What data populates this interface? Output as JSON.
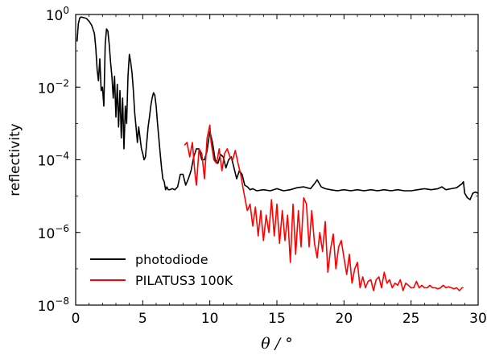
{
  "chart_data": {
    "type": "line",
    "title": "",
    "xlabel": "θ / °",
    "ylabel": "reflectivity",
    "xlim": [
      0,
      30
    ],
    "ylim": [
      1e-08,
      1
    ],
    "yscale": "log",
    "grid": false,
    "legend_position": "lower-left",
    "x_ticks": [
      0,
      5,
      10,
      15,
      20,
      25,
      30
    ],
    "x_tick_labels": [
      "0",
      "5",
      "10",
      "15",
      "20",
      "25",
      "30"
    ],
    "y_ticks": [
      1e-08,
      1e-06,
      0.0001,
      0.01,
      1
    ],
    "y_tick_labels": [
      {
        "base": "10",
        "exp": "−8"
      },
      {
        "base": "10",
        "exp": "−6"
      },
      {
        "base": "10",
        "exp": "−4"
      },
      {
        "base": "10",
        "exp": "−2"
      },
      {
        "base": "10",
        "exp": "0"
      }
    ],
    "series": [
      {
        "name": "photodiode",
        "color": "#000000",
        "x": [
          0.1,
          0.2,
          0.3,
          0.4,
          0.6,
          0.8,
          1.0,
          1.2,
          1.4,
          1.5,
          1.6,
          1.7,
          1.8,
          1.9,
          2.0,
          2.1,
          2.2,
          2.3,
          2.4,
          2.5,
          2.6,
          2.7,
          2.8,
          2.9,
          3.0,
          3.1,
          3.2,
          3.3,
          3.4,
          3.5,
          3.6,
          3.7,
          3.8,
          3.9,
          4.0,
          4.1,
          4.2,
          4.3,
          4.4,
          4.5,
          4.6,
          4.7,
          4.8,
          4.9,
          5.0,
          5.1,
          5.2,
          5.3,
          5.4,
          5.5,
          5.6,
          5.7,
          5.8,
          5.9,
          6.0,
          6.1,
          6.2,
          6.3,
          6.4,
          6.5,
          6.6,
          6.7,
          6.8,
          6.9,
          7.0,
          7.2,
          7.4,
          7.6,
          7.8,
          8.0,
          8.2,
          8.4,
          8.6,
          8.8,
          9.0,
          9.2,
          9.4,
          9.6,
          9.8,
          10.0,
          10.2,
          10.4,
          10.6,
          10.8,
          11.0,
          11.2,
          11.4,
          11.6,
          11.8,
          12.0,
          12.2,
          12.4,
          12.6,
          12.8,
          13.0,
          13.2,
          13.5,
          14.0,
          14.5,
          15.0,
          15.5,
          16.0,
          16.5,
          17.0,
          17.5,
          17.8,
          18.0,
          18.3,
          18.6,
          19.0,
          19.5,
          20.0,
          20.5,
          21.0,
          21.5,
          22.0,
          22.5,
          23.0,
          23.5,
          24.0,
          24.5,
          25.0,
          25.5,
          26.0,
          26.5,
          27.0,
          27.3,
          27.6,
          28.0,
          28.4,
          28.8,
          28.9,
          29.0,
          29.2,
          29.4,
          29.6,
          29.8,
          30.0
        ],
        "y": [
          0.18,
          0.55,
          0.8,
          0.85,
          0.82,
          0.78,
          0.65,
          0.5,
          0.3,
          0.12,
          0.03,
          0.015,
          0.06,
          0.008,
          0.01,
          0.003,
          0.15,
          0.4,
          0.35,
          0.15,
          0.05,
          0.02,
          0.005,
          0.02,
          0.0015,
          0.012,
          0.0008,
          0.008,
          0.0004,
          0.005,
          0.0002,
          0.003,
          0.001,
          0.02,
          0.08,
          0.05,
          0.025,
          0.008,
          0.002,
          0.0008,
          0.0003,
          0.0008,
          0.0004,
          0.0002,
          0.00015,
          0.0001,
          0.00012,
          0.0003,
          0.0008,
          0.0015,
          0.003,
          0.005,
          0.007,
          0.006,
          0.003,
          0.001,
          0.0004,
          0.00015,
          6e-05,
          3e-05,
          2.5e-05,
          1.5e-05,
          1.8e-05,
          1.5e-05,
          1.5e-05,
          1.6e-05,
          1.5e-05,
          1.8e-05,
          4e-05,
          4e-05,
          2e-05,
          3e-05,
          5e-05,
          0.00012,
          0.0002,
          0.0002,
          0.0001,
          0.0001,
          0.00018,
          0.0006,
          0.0003,
          0.0001,
          8e-05,
          0.00014,
          0.00012,
          6e-05,
          0.0001,
          0.00012,
          6e-05,
          3e-05,
          5e-05,
          4e-05,
          2e-05,
          1.8e-05,
          1.5e-05,
          1.6e-05,
          1.4e-05,
          1.5e-05,
          1.4e-05,
          1.6e-05,
          1.4e-05,
          1.5e-05,
          1.7e-05,
          1.8e-05,
          1.6e-05,
          2.2e-05,
          2.8e-05,
          1.8e-05,
          1.6e-05,
          1.5e-05,
          1.4e-05,
          1.5e-05,
          1.4e-05,
          1.5e-05,
          1.4e-05,
          1.5e-05,
          1.4e-05,
          1.5e-05,
          1.4e-05,
          1.5e-05,
          1.4e-05,
          1.4e-05,
          1.5e-05,
          1.6e-05,
          1.5e-05,
          1.6e-05,
          1.8e-05,
          1.5e-05,
          1.6e-05,
          1.7e-05,
          2.2e-05,
          2.5e-05,
          1.2e-05,
          9e-06,
          8e-06,
          1.2e-05,
          1.3e-05,
          1.2e-05
        ]
      },
      {
        "name": "PILATUS3 100K",
        "color": "#ff0000",
        "x": [
          8.1,
          8.3,
          8.5,
          8.7,
          8.9,
          9.0,
          9.2,
          9.4,
          9.6,
          9.8,
          10.0,
          10.1,
          10.3,
          10.5,
          10.7,
          10.9,
          11.1,
          11.3,
          11.5,
          11.7,
          11.9,
          12.1,
          12.3,
          12.5,
          12.7,
          12.8,
          13.0,
          13.2,
          13.4,
          13.6,
          13.8,
          14.0,
          14.2,
          14.4,
          14.6,
          14.8,
          15.0,
          15.2,
          15.4,
          15.6,
          15.8,
          16.0,
          16.2,
          16.4,
          16.6,
          16.8,
          17.0,
          17.2,
          17.4,
          17.6,
          17.8,
          18.0,
          18.2,
          18.4,
          18.6,
          18.8,
          19.0,
          19.2,
          19.4,
          19.6,
          19.8,
          20.0,
          20.2,
          20.4,
          20.6,
          20.8,
          21.0,
          21.2,
          21.4,
          21.6,
          21.8,
          22.0,
          22.2,
          22.4,
          22.6,
          22.8,
          23.0,
          23.2,
          23.4,
          23.6,
          23.8,
          24.0,
          24.2,
          24.4,
          24.6,
          24.8,
          25.0,
          25.2,
          25.4,
          25.6,
          25.8,
          26.0,
          26.2,
          26.4,
          26.6,
          26.8,
          27.0,
          27.2,
          27.4,
          27.6,
          27.8,
          28.0,
          28.2,
          28.4,
          28.6,
          28.8,
          28.9
        ],
        "y": [
          0.00025,
          0.0003,
          0.00012,
          0.0003,
          4e-05,
          2e-05,
          0.0002,
          0.00015,
          3e-05,
          0.0004,
          0.0009,
          0.0003,
          0.0001,
          8e-05,
          0.0002,
          5e-05,
          0.00015,
          0.0002,
          0.00012,
          0.0001,
          0.00018,
          8e-05,
          4e-05,
          1.5e-05,
          6e-06,
          4e-06,
          6e-06,
          1.5e-06,
          5e-06,
          8e-07,
          4e-06,
          6e-07,
          3e-06,
          1e-06,
          8e-06,
          8e-07,
          6e-06,
          5e-07,
          4e-06,
          6e-07,
          3e-06,
          1.5e-07,
          6e-06,
          2.5e-07,
          4e-06,
          4e-07,
          9e-06,
          6e-06,
          4e-07,
          4e-06,
          5e-07,
          2e-07,
          1e-06,
          3e-07,
          2e-06,
          8e-08,
          3.5e-07,
          9e-07,
          1e-07,
          4e-07,
          6e-07,
          2e-07,
          7e-08,
          2.5e-07,
          4e-08,
          1e-07,
          1.5e-07,
          3e-08,
          6e-08,
          3e-08,
          4.5e-08,
          5e-08,
          2.5e-08,
          5e-08,
          6e-08,
          3e-08,
          8e-08,
          4e-08,
          5e-08,
          3e-08,
          4e-08,
          3.5e-08,
          5e-08,
          2.5e-08,
          4e-08,
          3.5e-08,
          3e-08,
          3e-08,
          4.5e-08,
          3e-08,
          3.5e-08,
          3e-08,
          3e-08,
          3.5e-08,
          3e-08,
          3e-08,
          2.8e-08,
          3e-08,
          3.5e-08,
          3e-08,
          3.2e-08,
          3e-08,
          2.8e-08,
          3e-08,
          2.5e-08,
          3e-08,
          3e-08
        ]
      }
    ]
  }
}
